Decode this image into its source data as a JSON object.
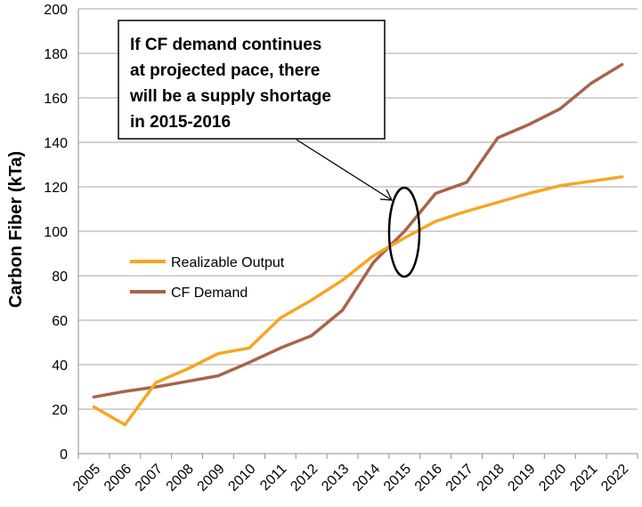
{
  "chart_data": {
    "type": "line",
    "ylabel": "Carbon Fiber (kTa)",
    "xlabel": "",
    "ylim": [
      0,
      200
    ],
    "yticks": [
      0,
      20,
      40,
      60,
      80,
      100,
      120,
      140,
      160,
      180,
      200
    ],
    "grid": "horizontal",
    "legend_position": "left-middle",
    "x": [
      "2005",
      "2006",
      "2007",
      "2008",
      "2009",
      "2010",
      "2011",
      "2012",
      "2013",
      "2014",
      "2015",
      "2016",
      "2017",
      "2018",
      "2019",
      "2020",
      "2021",
      "2022"
    ],
    "series": [
      {
        "name": "Realizable Output",
        "color": "#F5A623",
        "values": [
          21,
          13,
          32,
          38,
          45,
          47.5,
          61,
          69,
          78,
          89,
          97,
          104.5,
          109,
          113,
          117,
          120.5,
          122.5,
          124.5
        ]
      },
      {
        "name": "CF Demand",
        "color": "#A8644A",
        "values": [
          25.5,
          28,
          30,
          32.5,
          35,
          41,
          47.5,
          53,
          64.5,
          86,
          100,
          117,
          122,
          142,
          148,
          155,
          166.5,
          175
        ]
      }
    ],
    "annotation": {
      "lines": [
        "If CF demand continues",
        "at projected pace, there",
        "will be a supply shortage",
        "in 2015-2016"
      ]
    }
  }
}
